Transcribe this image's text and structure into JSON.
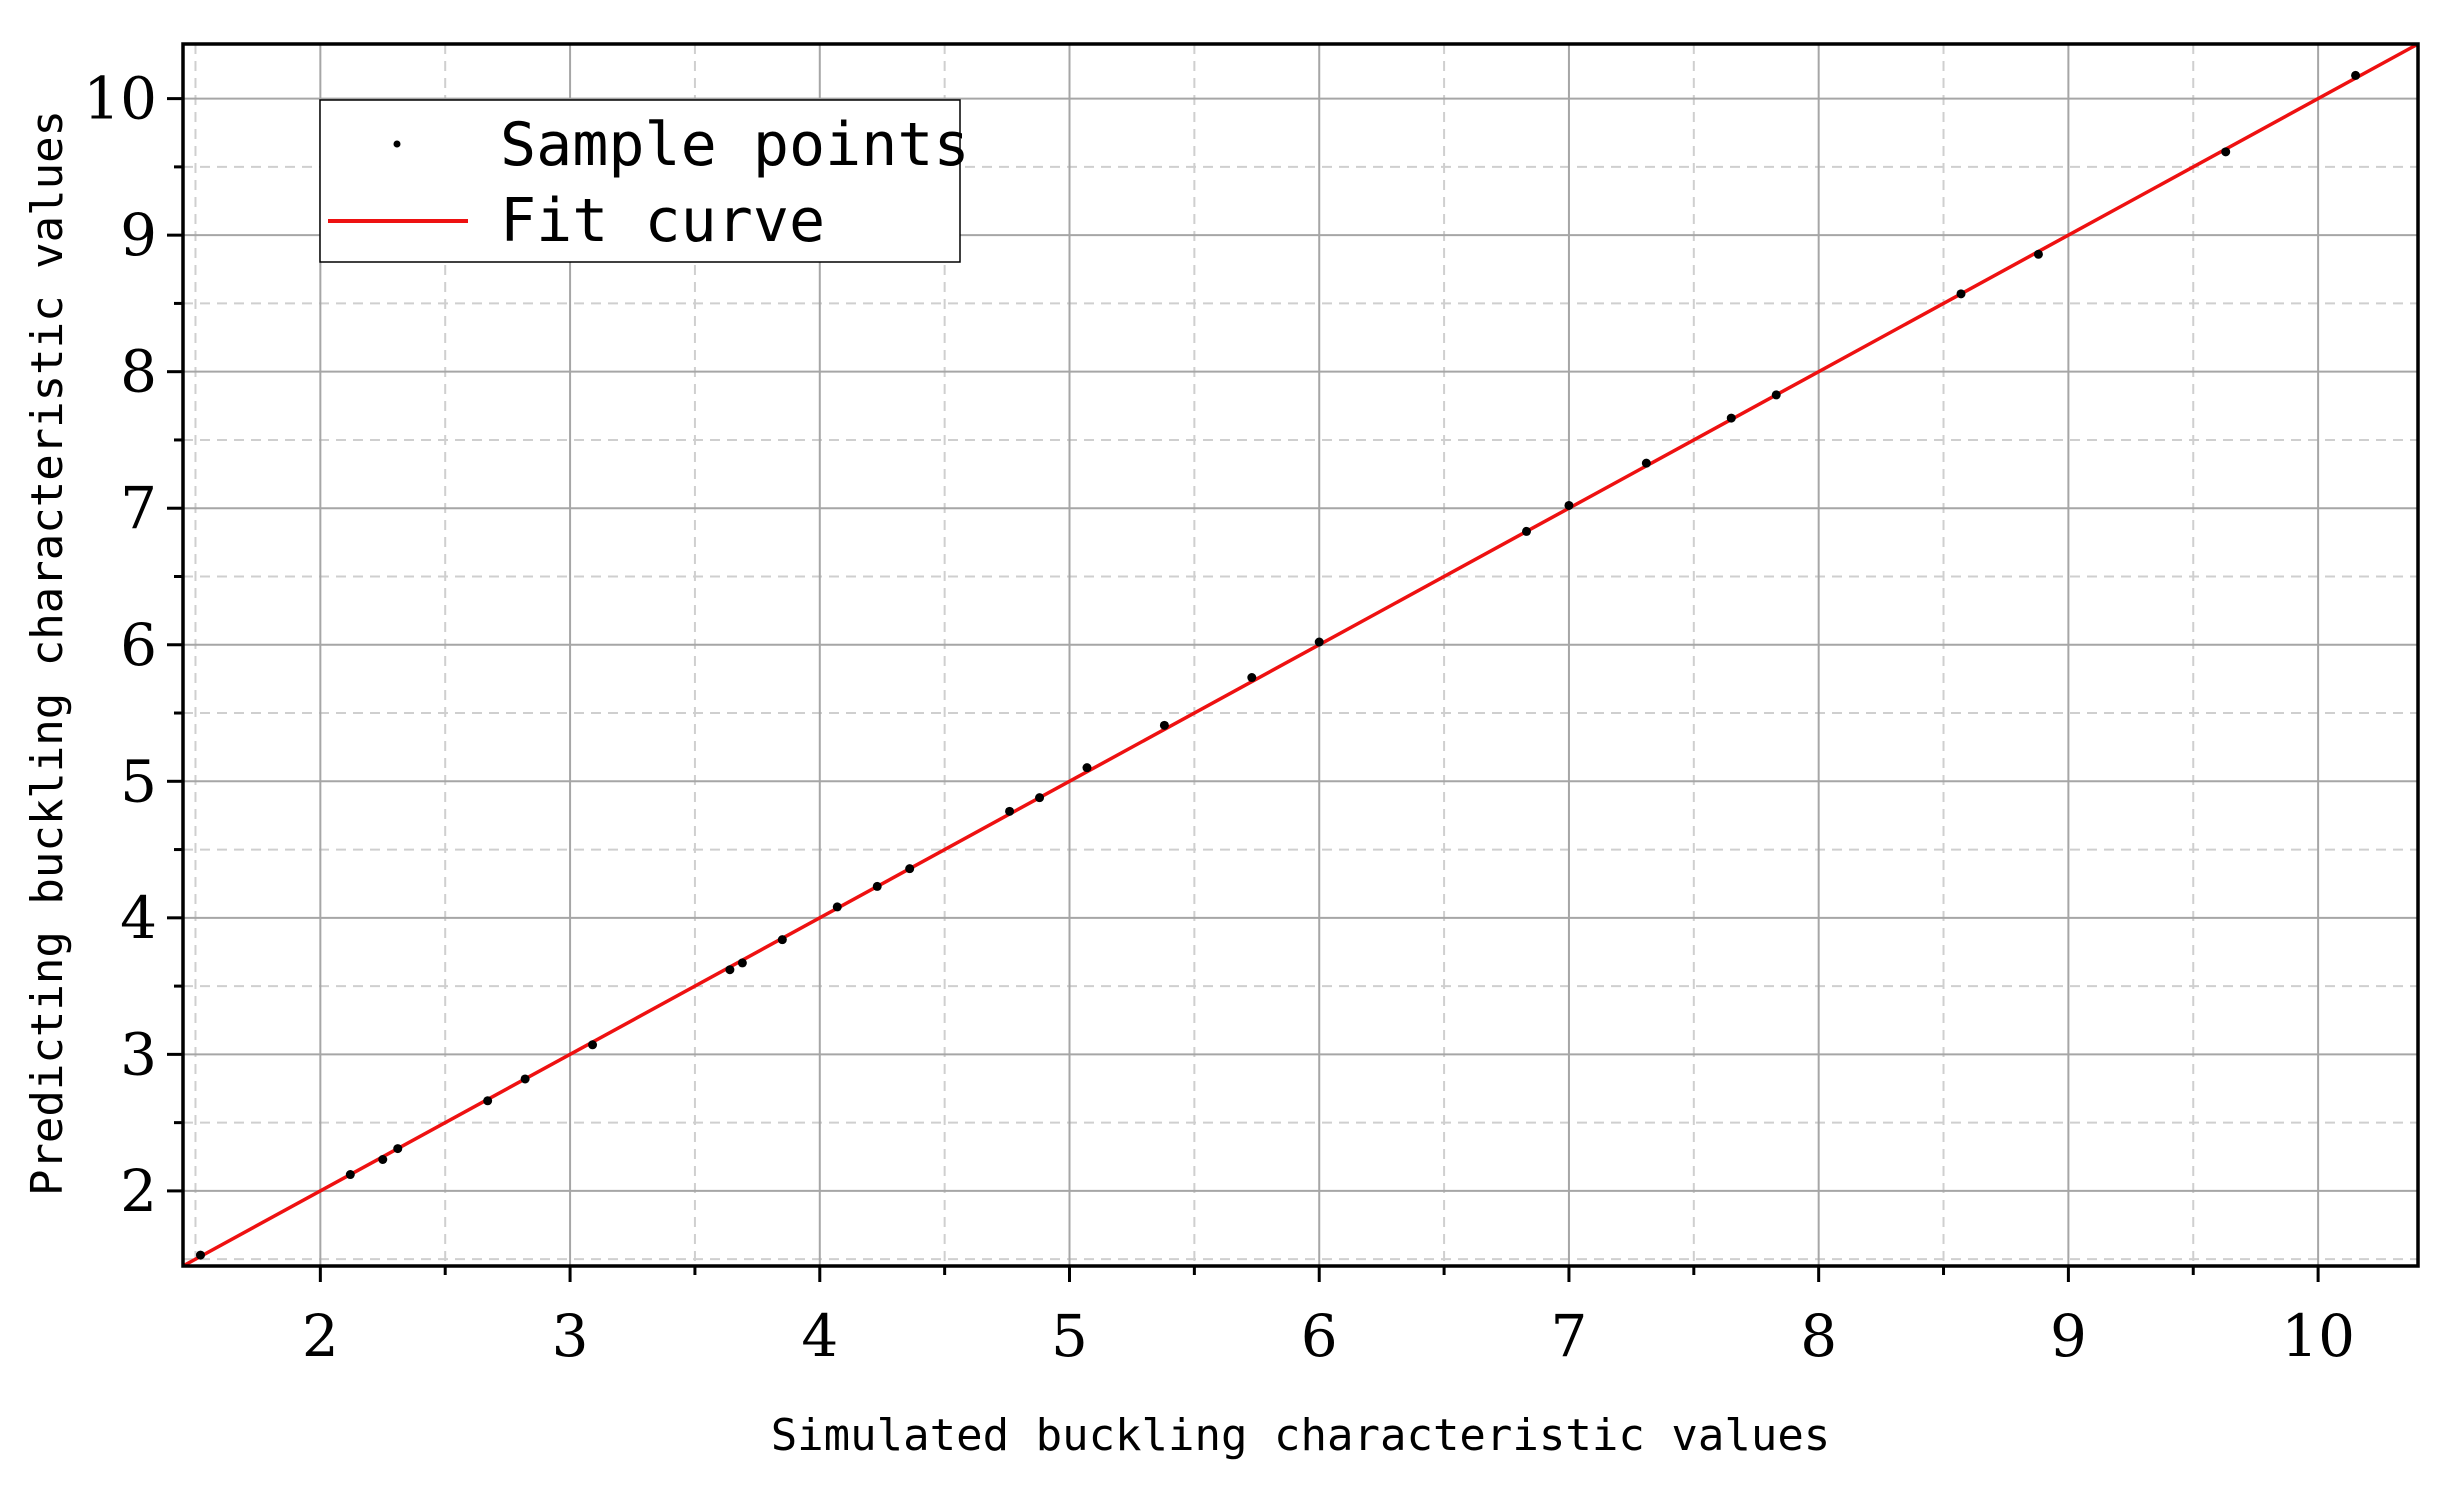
{
  "chart_data": {
    "type": "scatter",
    "xlabel": "Simulated buckling characteristic values",
    "ylabel": "Predicting buckling characteristic values",
    "xlim": [
      1.45,
      10.4
    ],
    "ylim": [
      1.45,
      10.4
    ],
    "xticks": [
      2,
      3,
      4,
      5,
      6,
      7,
      8,
      9,
      10
    ],
    "yticks": [
      2,
      3,
      4,
      5,
      6,
      7,
      8,
      9,
      10
    ],
    "minor_ticks": [
      1.5,
      2.5,
      3.5,
      4.5,
      5.5,
      6.5,
      7.5,
      8.5,
      9.5
    ],
    "grid": true,
    "legend_position": "top-left",
    "series": [
      {
        "name": "Sample points",
        "kind": "scatter",
        "color": "#000000",
        "points": [
          [
            1.52,
            1.53
          ],
          [
            2.12,
            2.12
          ],
          [
            2.25,
            2.23
          ],
          [
            2.31,
            2.31
          ],
          [
            2.67,
            2.66
          ],
          [
            2.82,
            2.82
          ],
          [
            3.09,
            3.07
          ],
          [
            3.64,
            3.62
          ],
          [
            3.69,
            3.67
          ],
          [
            3.85,
            3.84
          ],
          [
            4.07,
            4.08
          ],
          [
            4.23,
            4.23
          ],
          [
            4.36,
            4.36
          ],
          [
            4.76,
            4.78
          ],
          [
            4.88,
            4.88
          ],
          [
            5.07,
            5.1
          ],
          [
            5.38,
            5.41
          ],
          [
            5.73,
            5.76
          ],
          [
            6.0,
            6.02
          ],
          [
            6.83,
            6.83
          ],
          [
            7.0,
            7.02
          ],
          [
            7.31,
            7.33
          ],
          [
            7.65,
            7.66
          ],
          [
            7.83,
            7.83
          ],
          [
            8.57,
            8.57
          ],
          [
            8.88,
            8.86
          ],
          [
            9.63,
            9.61
          ],
          [
            10.15,
            10.17
          ]
        ]
      },
      {
        "name": "Fit curve",
        "kind": "line",
        "color": "#ee1111",
        "points": [
          [
            1.45,
            1.45
          ],
          [
            10.4,
            10.4
          ]
        ]
      }
    ]
  }
}
